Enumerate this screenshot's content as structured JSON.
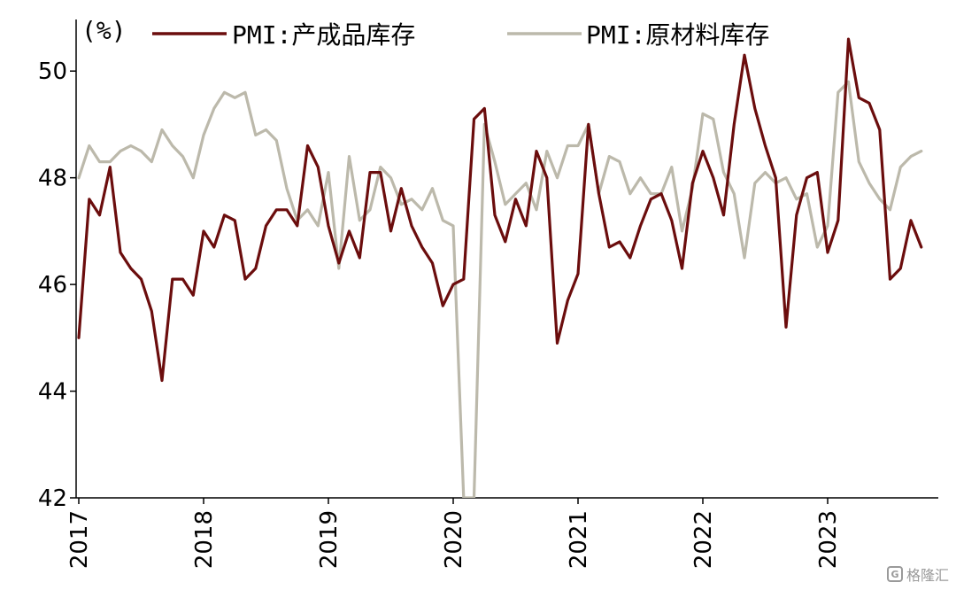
{
  "chart_data": {
    "type": "line",
    "unit_label": "(%)",
    "ylim": [
      42,
      51
    ],
    "y_ticks": [
      42,
      44,
      46,
      48,
      50
    ],
    "x_start": "2017-01",
    "x_tick_labels": [
      "2017",
      "2018",
      "2019",
      "2020",
      "2021",
      "2022",
      "2023"
    ],
    "grid": false,
    "legend_position": "top",
    "series": [
      {
        "name": "PMI:产成品库存",
        "color": "#6b0d0d",
        "values": [
          45.0,
          47.6,
          47.3,
          48.2,
          46.6,
          46.3,
          46.1,
          45.5,
          44.2,
          46.1,
          46.1,
          45.8,
          47.0,
          46.7,
          47.3,
          47.2,
          46.1,
          46.3,
          47.1,
          47.4,
          47.4,
          47.1,
          48.6,
          48.2,
          47.1,
          46.4,
          47.0,
          46.5,
          48.1,
          48.1,
          47.0,
          47.8,
          47.1,
          46.7,
          46.4,
          45.6,
          46.0,
          46.1,
          49.1,
          49.3,
          47.3,
          46.8,
          47.6,
          47.1,
          48.5,
          48.0,
          44.9,
          45.7,
          46.2,
          49.0,
          47.7,
          46.7,
          46.8,
          46.5,
          47.1,
          47.6,
          47.7,
          47.2,
          46.3,
          47.9,
          48.5,
          48.0,
          47.3,
          49.0,
          50.3,
          49.3,
          48.6,
          48.0,
          45.2,
          47.3,
          48.0,
          48.1,
          46.6,
          47.2,
          50.6,
          49.5,
          49.4,
          48.9,
          46.1,
          46.3,
          47.2,
          46.7
        ]
      },
      {
        "name": "PMI:原材料库存",
        "color": "#bcb9ab",
        "values": [
          48.0,
          48.6,
          48.3,
          48.3,
          48.5,
          48.6,
          48.5,
          48.3,
          48.9,
          48.6,
          48.4,
          48.0,
          48.8,
          49.3,
          49.6,
          49.5,
          49.6,
          48.8,
          48.9,
          48.7,
          47.8,
          47.2,
          47.4,
          47.1,
          48.1,
          46.3,
          48.4,
          47.2,
          47.4,
          48.2,
          48.0,
          47.5,
          47.6,
          47.4,
          47.8,
          47.2,
          47.1,
          42.0,
          42.0,
          49.0,
          48.3,
          47.5,
          47.7,
          47.9,
          47.4,
          48.5,
          48.0,
          48.6,
          48.6,
          49.0,
          47.7,
          48.4,
          48.3,
          47.7,
          48.0,
          47.7,
          47.7,
          48.2,
          47.0,
          47.8,
          49.2,
          49.1,
          48.1,
          47.7,
          46.5,
          47.9,
          48.1,
          47.9,
          48.0,
          47.6,
          47.7,
          46.7,
          47.1,
          49.6,
          49.8,
          48.3,
          47.9,
          47.6,
          47.4,
          48.2,
          48.4,
          48.5
        ]
      }
    ]
  },
  "watermark": {
    "logo_icon": "gelonghui-logo-icon",
    "logo_text": "G",
    "text": "格隆汇"
  }
}
